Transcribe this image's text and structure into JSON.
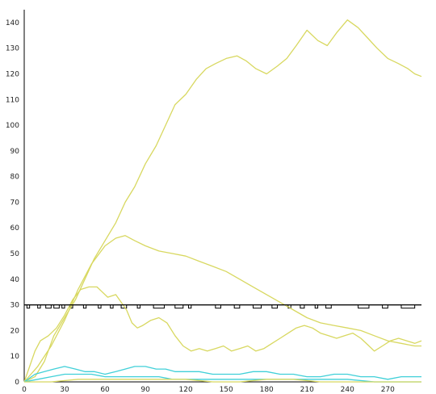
{
  "chart_data": {
    "type": "line",
    "title": "",
    "xlabel": "",
    "ylabel": "",
    "xlim": [
      0,
      295
    ],
    "ylim": [
      0,
      145
    ],
    "grid": false,
    "x_ticks": [
      0,
      30,
      60,
      90,
      120,
      150,
      180,
      210,
      240,
      270
    ],
    "y_ticks": [
      0,
      10,
      20,
      30,
      40,
      50,
      60,
      70,
      80,
      90,
      100,
      110,
      120,
      130,
      140
    ],
    "reference_line": {
      "y": 30,
      "color": "#000000"
    },
    "series": [
      {
        "color": "#d8d860",
        "points": [
          [
            0,
            0
          ],
          [
            8,
            2
          ],
          [
            15,
            8
          ],
          [
            22,
            18
          ],
          [
            30,
            25
          ],
          [
            38,
            32
          ],
          [
            45,
            40
          ],
          [
            52,
            48
          ],
          [
            60,
            55
          ],
          [
            68,
            62
          ],
          [
            75,
            70
          ],
          [
            82,
            76
          ],
          [
            90,
            85
          ],
          [
            98,
            92
          ],
          [
            105,
            100
          ],
          [
            112,
            108
          ],
          [
            120,
            112
          ],
          [
            128,
            118
          ],
          [
            135,
            122
          ],
          [
            142,
            124
          ],
          [
            150,
            126
          ],
          [
            158,
            127
          ],
          [
            165,
            125
          ],
          [
            172,
            122
          ],
          [
            180,
            120
          ],
          [
            188,
            123
          ],
          [
            195,
            126
          ],
          [
            202,
            131
          ],
          [
            210,
            137
          ],
          [
            218,
            133
          ],
          [
            225,
            131
          ],
          [
            232,
            136
          ],
          [
            240,
            141
          ],
          [
            248,
            138
          ],
          [
            255,
            134
          ],
          [
            262,
            130
          ],
          [
            270,
            126
          ],
          [
            278,
            124
          ],
          [
            285,
            122
          ],
          [
            290,
            120
          ],
          [
            295,
            119
          ]
        ]
      },
      {
        "color": "#d8d860",
        "points": [
          [
            0,
            0
          ],
          [
            10,
            6
          ],
          [
            20,
            14
          ],
          [
            30,
            24
          ],
          [
            40,
            36
          ],
          [
            50,
            46
          ],
          [
            60,
            53
          ],
          [
            68,
            56
          ],
          [
            75,
            57
          ],
          [
            82,
            55
          ],
          [
            90,
            53
          ],
          [
            100,
            51
          ],
          [
            110,
            50
          ],
          [
            120,
            49
          ],
          [
            130,
            47
          ],
          [
            140,
            45
          ],
          [
            150,
            43
          ],
          [
            160,
            40
          ],
          [
            170,
            37
          ],
          [
            180,
            34
          ],
          [
            190,
            31
          ],
          [
            200,
            28
          ],
          [
            210,
            25
          ],
          [
            220,
            23
          ],
          [
            230,
            22
          ],
          [
            240,
            21
          ],
          [
            250,
            20
          ],
          [
            260,
            18
          ],
          [
            270,
            16
          ],
          [
            280,
            15
          ],
          [
            290,
            14
          ],
          [
            295,
            14
          ]
        ]
      },
      {
        "color": "#d8d860",
        "points": [
          [
            0,
            0
          ],
          [
            4,
            6
          ],
          [
            8,
            12
          ],
          [
            12,
            16
          ],
          [
            18,
            18
          ],
          [
            24,
            21
          ],
          [
            30,
            26
          ],
          [
            36,
            32
          ],
          [
            42,
            36
          ],
          [
            48,
            37
          ],
          [
            54,
            37
          ],
          [
            58,
            35
          ],
          [
            62,
            33
          ],
          [
            68,
            34
          ],
          [
            72,
            31
          ],
          [
            76,
            28
          ],
          [
            80,
            23
          ],
          [
            84,
            21
          ],
          [
            88,
            22
          ],
          [
            94,
            24
          ],
          [
            100,
            25
          ],
          [
            106,
            23
          ],
          [
            112,
            18
          ],
          [
            118,
            14
          ],
          [
            124,
            12
          ],
          [
            130,
            13
          ],
          [
            136,
            12
          ],
          [
            142,
            13
          ],
          [
            148,
            14
          ],
          [
            154,
            12
          ],
          [
            160,
            13
          ],
          [
            166,
            14
          ],
          [
            172,
            12
          ],
          [
            178,
            13
          ],
          [
            184,
            15
          ],
          [
            190,
            17
          ],
          [
            196,
            19
          ],
          [
            202,
            21
          ],
          [
            208,
            22
          ],
          [
            214,
            21
          ],
          [
            220,
            19
          ],
          [
            226,
            18
          ],
          [
            232,
            17
          ],
          [
            238,
            18
          ],
          [
            244,
            19
          ],
          [
            250,
            17
          ],
          [
            256,
            14
          ],
          [
            260,
            12
          ],
          [
            266,
            14
          ],
          [
            272,
            16
          ],
          [
            278,
            17
          ],
          [
            284,
            16
          ],
          [
            290,
            15
          ],
          [
            295,
            16
          ]
        ]
      },
      {
        "color": "#40d0d8",
        "points": [
          [
            0,
            0
          ],
          [
            8,
            3
          ],
          [
            15,
            4
          ],
          [
            22,
            5
          ],
          [
            30,
            6
          ],
          [
            38,
            5
          ],
          [
            45,
            4
          ],
          [
            52,
            4
          ],
          [
            60,
            3
          ],
          [
            68,
            4
          ],
          [
            75,
            5
          ],
          [
            82,
            6
          ],
          [
            90,
            6
          ],
          [
            98,
            5
          ],
          [
            105,
            5
          ],
          [
            112,
            4
          ],
          [
            120,
            4
          ],
          [
            130,
            4
          ],
          [
            140,
            3
          ],
          [
            150,
            3
          ],
          [
            160,
            3
          ],
          [
            170,
            4
          ],
          [
            180,
            4
          ],
          [
            190,
            3
          ],
          [
            200,
            3
          ],
          [
            210,
            2
          ],
          [
            220,
            2
          ],
          [
            230,
            3
          ],
          [
            240,
            3
          ],
          [
            250,
            2
          ],
          [
            260,
            2
          ],
          [
            270,
            1
          ],
          [
            280,
            2
          ],
          [
            290,
            2
          ],
          [
            295,
            2
          ]
        ]
      },
      {
        "color": "#40d0d8",
        "points": [
          [
            0,
            0
          ],
          [
            10,
            1
          ],
          [
            20,
            2
          ],
          [
            30,
            3
          ],
          [
            40,
            3
          ],
          [
            50,
            3
          ],
          [
            60,
            2
          ],
          [
            70,
            2
          ],
          [
            80,
            2
          ],
          [
            90,
            2
          ],
          [
            100,
            2
          ],
          [
            110,
            1
          ],
          [
            120,
            1
          ],
          [
            140,
            1
          ],
          [
            160,
            1
          ],
          [
            180,
            1
          ],
          [
            200,
            1
          ],
          [
            220,
            1
          ],
          [
            240,
            1
          ],
          [
            260,
            0
          ],
          [
            280,
            0
          ],
          [
            295,
            0
          ]
        ]
      },
      {
        "color": "#d8d860",
        "points": [
          [
            0,
            0
          ],
          [
            20,
            0
          ],
          [
            40,
            1
          ],
          [
            60,
            1
          ],
          [
            80,
            1
          ],
          [
            100,
            1
          ],
          [
            120,
            1
          ],
          [
            140,
            0
          ],
          [
            160,
            0
          ],
          [
            180,
            1
          ],
          [
            200,
            1
          ],
          [
            220,
            0
          ],
          [
            240,
            0
          ],
          [
            260,
            0
          ],
          [
            280,
            0
          ],
          [
            295,
            0
          ]
        ]
      }
    ]
  }
}
